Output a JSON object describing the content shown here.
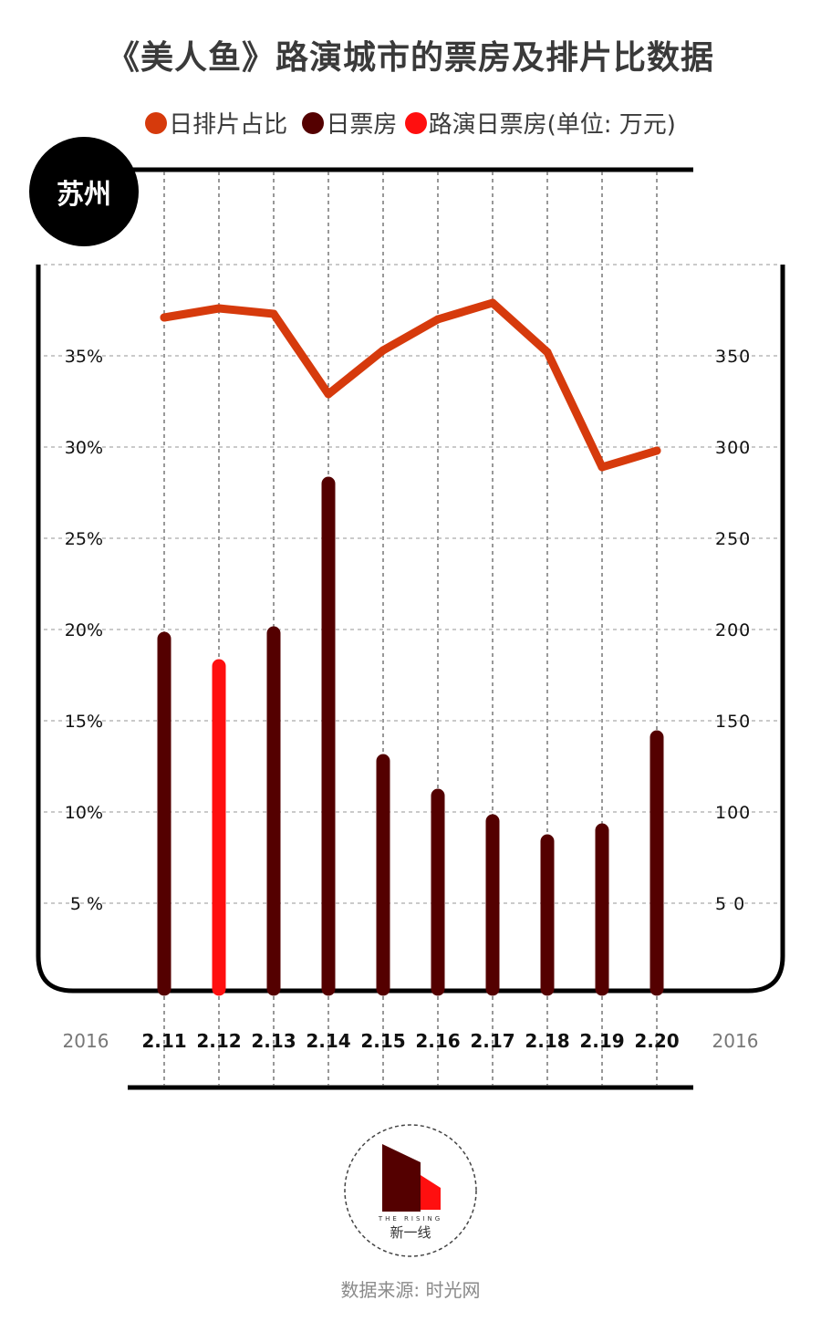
{
  "title": "《美人鱼》路演城市的票房及排片比数据",
  "legend": [
    {
      "label": "日排片占比",
      "color": "#d63a0c"
    },
    {
      "label": "日票房",
      "color": "#540000"
    },
    {
      "label": "路演日票房(单位: 万元)",
      "color": "#ff0f0f"
    }
  ],
  "city": "苏州",
  "year_left": "2016",
  "year_right": "2016",
  "source": "数据来源: 时光网",
  "logo": {
    "top_text": "THE RISING",
    "bottom_text": "新一线"
  },
  "colors": {
    "line": "#d63a0c",
    "bar": "#540000",
    "bar_roadshow": "#ff0f0f",
    "frame": "#000000"
  },
  "chart_data": {
    "type": "bar+line",
    "categories": [
      "2.11",
      "2.12",
      "2.13",
      "2.14",
      "2.15",
      "2.16",
      "2.17",
      "2.18",
      "2.19",
      "2.20"
    ],
    "series": [
      {
        "name": "日票房",
        "type": "bar",
        "axis": "right",
        "values": [
          195,
          180,
          198,
          280,
          128,
          109,
          95,
          84,
          90,
          141
        ],
        "highlight_index": 1
      },
      {
        "name": "日排片占比",
        "type": "line",
        "axis": "left",
        "values": [
          37.1,
          37.6,
          37.3,
          32.9,
          35.3,
          37.0,
          37.9,
          35.2,
          28.9,
          29.8
        ]
      }
    ],
    "left_axis": {
      "ticks": [
        "35%",
        "30%",
        "25%",
        "20%",
        "15%",
        "10%",
        "5 %"
      ],
      "values": [
        35,
        30,
        25,
        20,
        15,
        10,
        5
      ],
      "range": [
        0,
        40
      ]
    },
    "right_axis": {
      "ticks": [
        "350",
        "300",
        "250",
        "200",
        "150",
        "100",
        "5 0"
      ],
      "values": [
        350,
        300,
        250,
        200,
        150,
        100,
        50
      ],
      "range": [
        0,
        400
      ]
    },
    "grid": true
  }
}
